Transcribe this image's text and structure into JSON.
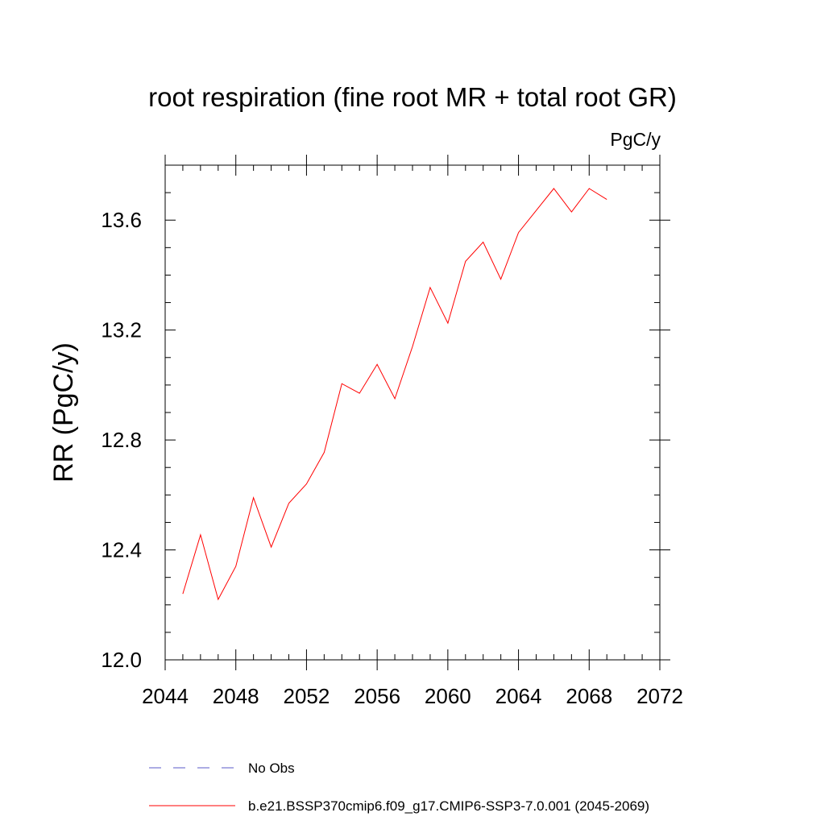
{
  "chart_data": {
    "type": "line",
    "title": "root respiration (fine root MR + total root GR)",
    "units": "PgC/y",
    "ylabel": "RR  (PgC/y)",
    "xlabel": "",
    "xlim": [
      2044,
      2072
    ],
    "ylim": [
      12.0,
      13.8
    ],
    "xticks": [
      2044,
      2048,
      2052,
      2056,
      2060,
      2064,
      2068,
      2072
    ],
    "xtick_labels": [
      "2044",
      "2048",
      "2052",
      "2056",
      "2060",
      "2064",
      "2068",
      "2072"
    ],
    "yticks": [
      12.0,
      12.4,
      12.8,
      13.2,
      13.6
    ],
    "ytick_labels": [
      "12.0",
      "12.4",
      "12.8",
      "13.2",
      "13.6"
    ],
    "x_minor_step": 1,
    "y_minor_step": 0.1,
    "grid": false,
    "legend_position": "bottom",
    "series": [
      {
        "name": "b.e21.BSSP370cmip6.f09_g17.CMIP6-SSP3-7.0.001 (2045-2069)",
        "color": "#ff0000",
        "style": "solid",
        "x": [
          2045,
          2046,
          2047,
          2048,
          2049,
          2050,
          2051,
          2052,
          2053,
          2054,
          2055,
          2056,
          2057,
          2058,
          2059,
          2060,
          2061,
          2062,
          2063,
          2064,
          2065,
          2066,
          2067,
          2068,
          2069
        ],
        "y": [
          12.24,
          12.455,
          12.22,
          12.34,
          12.59,
          12.41,
          12.57,
          12.64,
          12.755,
          13.005,
          12.97,
          13.075,
          12.95,
          13.14,
          13.355,
          13.225,
          13.45,
          13.52,
          13.385,
          13.555,
          13.635,
          13.715,
          13.63,
          13.715,
          13.675
        ]
      }
    ],
    "legend": [
      {
        "label": "No Obs",
        "color": "#5a5ac8",
        "style": "dashed"
      },
      {
        "label": "b.e21.BSSP370cmip6.f09_g17.CMIP6-SSP3-7.0.001 (2045-2069)",
        "color": "#ff0000",
        "style": "solid"
      }
    ]
  }
}
